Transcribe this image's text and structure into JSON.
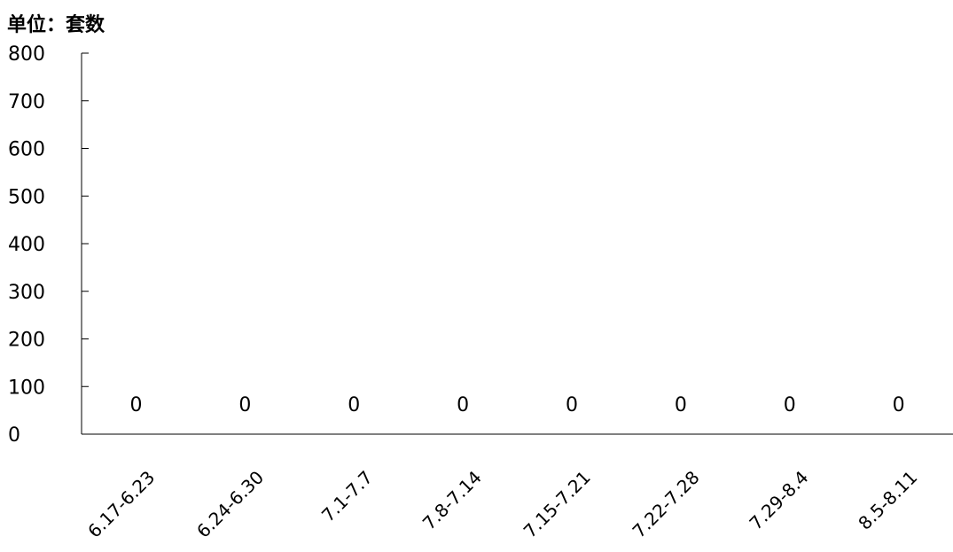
{
  "chart_data": {
    "type": "bar",
    "unit_label": "单位：套数",
    "categories": [
      "6.17-6.23",
      "6.24-6.30",
      "7.1-7.7",
      "7.8-7.14",
      "7.15-7.21",
      "7.22-7.28",
      "7.29-8.4",
      "8.5-8.11"
    ],
    "values": [
      0,
      0,
      0,
      0,
      0,
      0,
      0,
      0
    ],
    "data_labels": [
      "0",
      "0",
      "0",
      "0",
      "0",
      "0",
      "0",
      "0"
    ],
    "yticks": [
      "0",
      "100",
      "200",
      "300",
      "400",
      "500",
      "600",
      "700",
      "800"
    ],
    "ylim": [
      0,
      800
    ],
    "grid": false,
    "legend": "none",
    "colors": {
      "axis": "#000000",
      "text": "#000000"
    }
  }
}
